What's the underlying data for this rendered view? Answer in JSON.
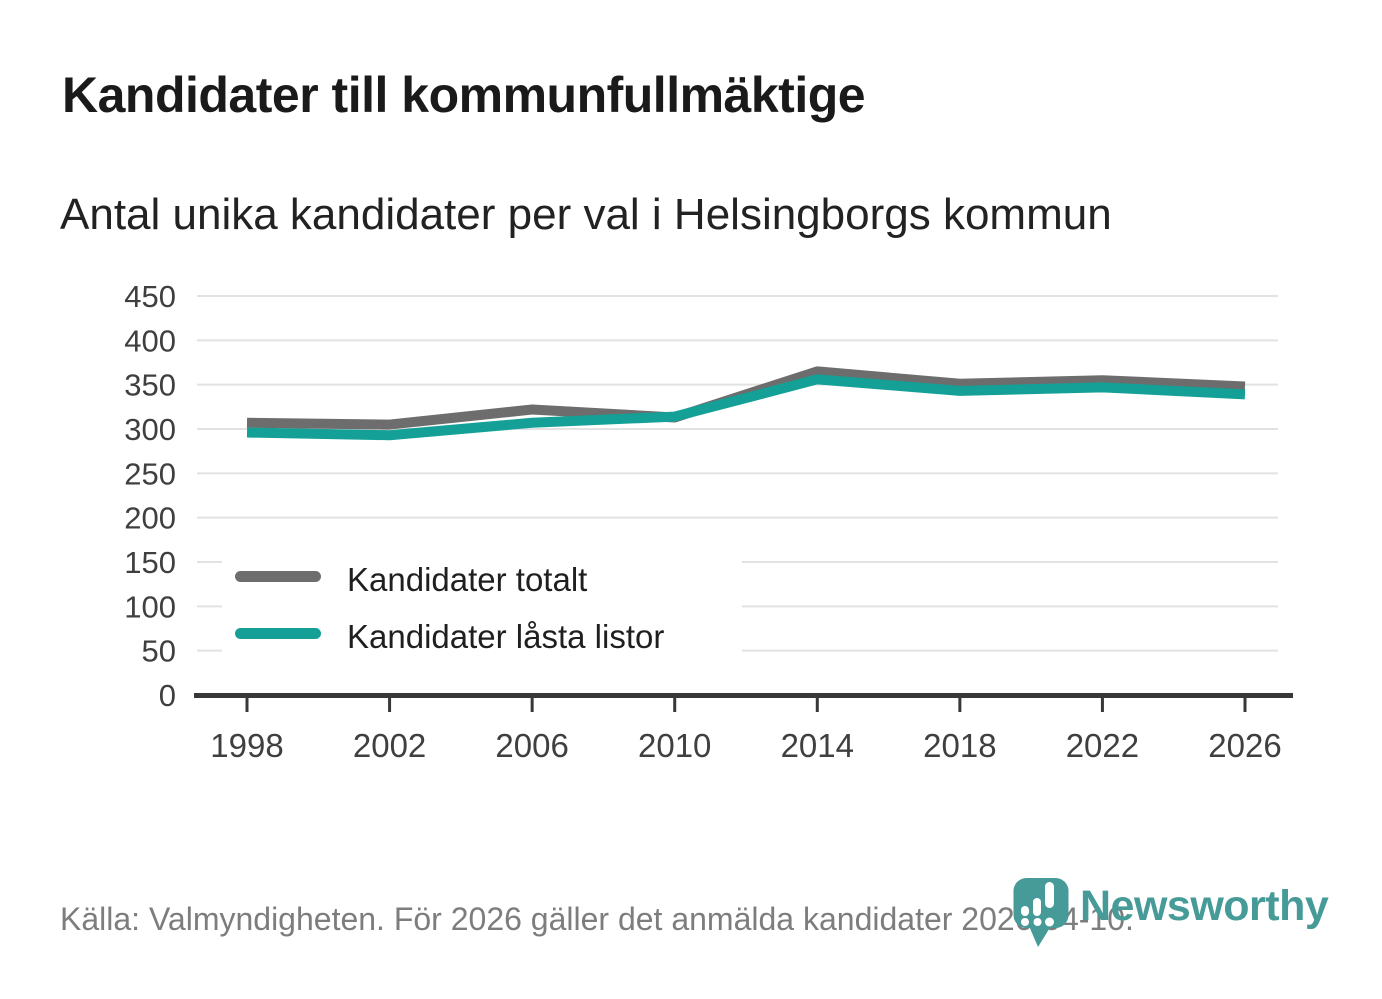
{
  "footer": {
    "source": "Källa: Valmyndigheten. För 2026 gäller det anmälda kandidater 2026-04-10."
  },
  "logo": {
    "brand": "Newsworthy"
  },
  "colors": {
    "series_total_gray": "#6D6D6D",
    "series_locked_teal": "#14A096",
    "logo_teal": "#469B98",
    "grid": "#E2E2E2",
    "axis": "#383838",
    "tick_label": "#3F3F3F",
    "legend_text": "#1F1F1F",
    "title_text": "#1A1A1A",
    "footer_text": "#7D7D7D"
  },
  "chart_data": {
    "type": "line",
    "title": "Kandidater till kommunfullmäktige",
    "subtitle": "Antal unika kandidater per val i Helsingborgs kommun",
    "x": [
      1998,
      2002,
      2006,
      2010,
      2014,
      2018,
      2022,
      2026
    ],
    "series": [
      {
        "name": "Kandidater totalt",
        "color": "#6D6D6D",
        "values": [
          307,
          305,
          322,
          313,
          365,
          351,
          355,
          348
        ]
      },
      {
        "name": "Kandidater låsta listor",
        "color": "#14A096",
        "values": [
          296,
          293,
          307,
          314,
          356,
          343,
          347,
          339
        ]
      }
    ],
    "xlabel": "",
    "ylabel": "",
    "ylim": [
      0,
      450
    ],
    "ytick_step": 50,
    "grid": true,
    "legend_position": "inside-bottom-left"
  }
}
